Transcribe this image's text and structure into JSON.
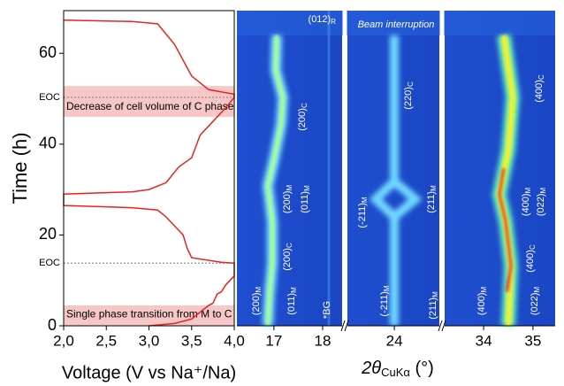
{
  "chart_data": [
    {
      "type": "line",
      "y_label": "Time (h)",
      "x_label": "Voltage (V vs Na⁺/Na)",
      "xlim": [
        2.0,
        4.0
      ],
      "xticks": [
        {
          "value": 2.0,
          "label": "2,0"
        },
        {
          "value": 2.5,
          "label": "2,5"
        },
        {
          "value": 3.0,
          "label": "3,0"
        },
        {
          "value": 3.5,
          "label": "3,5"
        },
        {
          "value": 4.0,
          "label": "4,0"
        }
      ],
      "ylim": [
        0,
        69.4
      ],
      "yticks": [
        0,
        20,
        40,
        60
      ],
      "series": [
        {
          "color": "#e8231d",
          "x": [
            3.0,
            3.3,
            3.5,
            3.6,
            3.7,
            3.75,
            3.8,
            3.85,
            3.9,
            3.95,
            4.0,
            4.0,
            3.85,
            3.5,
            3.45,
            3.4,
            3.3,
            3.2,
            3.1,
            2.8,
            2.0,
            2.0,
            2.8,
            3.0,
            3.2,
            3.35,
            3.5,
            3.6,
            3.75,
            3.9,
            4.0,
            4.0,
            3.7,
            3.5,
            3.3,
            3.1,
            2.8,
            2.0
          ],
          "values": [
            0,
            0.5,
            1.5,
            3,
            4.5,
            5,
            7,
            7.5,
            9,
            10,
            11,
            13.8,
            14,
            15,
            17,
            20,
            22,
            24,
            25.5,
            26,
            26.5,
            29,
            29.5,
            30,
            31.5,
            35,
            37,
            42,
            45,
            48,
            50.3,
            51,
            52,
            55,
            62,
            66.5,
            67,
            67.3
          ]
        }
      ],
      "eoc_lines": [
        50.3,
        13.8
      ],
      "eoc_label": "EOC",
      "bands": [
        [
          46,
          52.8
        ],
        [
          0,
          4.5
        ]
      ],
      "band_color": "#f7c6c6",
      "band_labels": [
        "Decrease of cell volume of C phase",
        "Single phase transition from M to C"
      ]
    },
    {
      "type": "heatmap",
      "x_label": {
        "prefix": "2θ",
        "sub": "CuKα",
        "suffix": " (°)"
      },
      "panels": [
        {
          "xlim": [
            16.24,
            18.4
          ],
          "xticks": [
            17,
            18
          ]
        },
        {
          "xlim": [
            23.03,
            24.93
          ],
          "xticks": [
            24
          ]
        },
        {
          "xlim": [
            33.21,
            35.45
          ],
          "xticks": [
            34,
            35
          ]
        }
      ],
      "note": "Beam interruption",
      "annotations": [
        {
          "text": "(200)",
          "sub": "M"
        },
        {
          "text": "(011)",
          "sub": "M"
        },
        {
          "text": "*BG",
          "sub": ""
        },
        {
          "text": "(200)",
          "sub": "C"
        },
        {
          "text": "(200)",
          "sub": "M"
        },
        {
          "text": "(011)",
          "sub": "M"
        },
        {
          "text": "(200)",
          "sub": "C"
        },
        {
          "text": "(012)",
          "sub": "R"
        },
        {
          "text": "(-211)",
          "sub": "M"
        },
        {
          "text": "(211)",
          "sub": "M"
        },
        {
          "text": "(-211)",
          "sub": "M"
        },
        {
          "text": "(211)",
          "sub": "M"
        },
        {
          "text": "(220)",
          "sub": "C"
        },
        {
          "text": "(400)",
          "sub": "M"
        },
        {
          "text": "(022)",
          "sub": "M"
        },
        {
          "text": "(400)",
          "sub": "C"
        },
        {
          "text": "(400)",
          "sub": "M"
        },
        {
          "text": "(022)",
          "sub": "M"
        },
        {
          "text": "(400)",
          "sub": "C"
        }
      ]
    }
  ]
}
